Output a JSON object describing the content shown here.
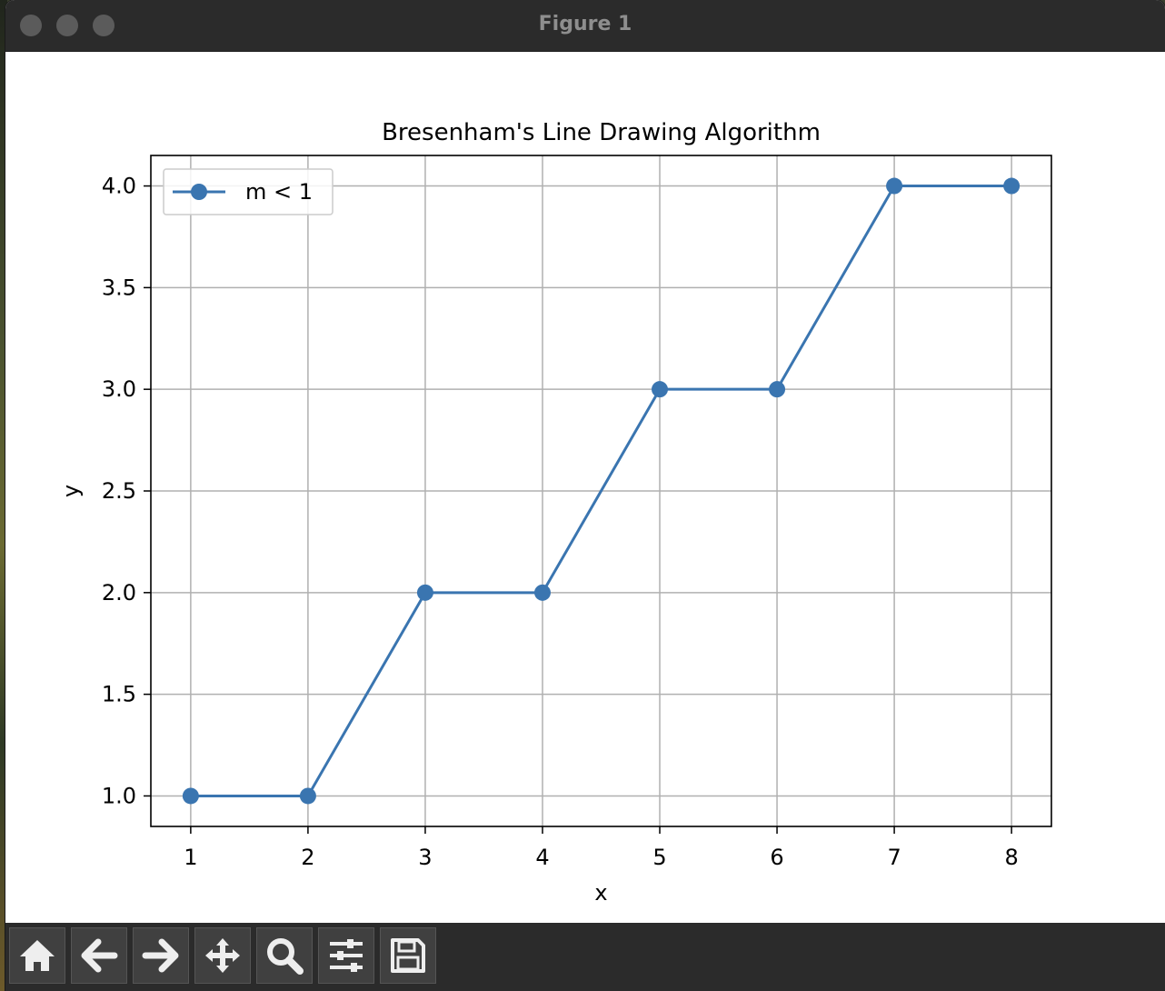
{
  "window": {
    "title": "Figure 1"
  },
  "toolbar": {
    "buttons": [
      {
        "name": "home",
        "icon": "home-icon"
      },
      {
        "name": "back",
        "icon": "arrow-left-icon"
      },
      {
        "name": "forward",
        "icon": "arrow-right-icon"
      },
      {
        "name": "pan",
        "icon": "move-icon"
      },
      {
        "name": "zoom",
        "icon": "magnifier-icon"
      },
      {
        "name": "configure-subplots",
        "icon": "sliders-icon"
      },
      {
        "name": "save",
        "icon": "floppy-disk-icon"
      }
    ]
  },
  "colors": {
    "line": "#3a75b0",
    "grid": "#b0b0b0",
    "chrome": "#2b2b2b"
  },
  "chart_data": {
    "type": "line",
    "title": "Bresenham's Line Drawing Algorithm",
    "xlabel": "x",
    "ylabel": "y",
    "x": [
      1,
      2,
      3,
      4,
      5,
      6,
      7,
      8
    ],
    "series": [
      {
        "name": "m < 1",
        "values": [
          1,
          1,
          2,
          2,
          3,
          3,
          4,
          4
        ],
        "marker": "circle"
      }
    ],
    "xlim": [
      0.66,
      8.34
    ],
    "ylim": [
      0.85,
      4.15
    ],
    "xticks": [
      "1",
      "2",
      "3",
      "4",
      "5",
      "6",
      "7",
      "8"
    ],
    "yticks": [
      "1.0",
      "1.5",
      "2.0",
      "2.5",
      "3.0",
      "3.5",
      "4.0"
    ],
    "grid": true,
    "legend_position": "upper left"
  }
}
